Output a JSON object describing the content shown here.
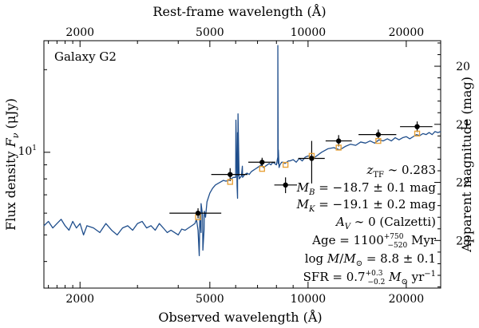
{
  "chart_data": {
    "type": "line",
    "annotation_title": "Galaxy G2",
    "xlabel": "Observed wavelength (Å)",
    "top_xlabel": "Rest-frame wavelength (Å)",
    "ylabel": "Flux density F_ν (μJy)",
    "right_ylabel": "Apparent magnitude (mag)",
    "xscale": "log",
    "yscale": "log",
    "xlim": [
      1550,
      25500
    ],
    "ylim": [
      3.2,
      25.5
    ],
    "right_ylim": [
      19.56,
      23.82
    ],
    "rest_ticks": [
      2000,
      5000,
      10000,
      20000
    ],
    "rest_tick_labels": [
      "2000",
      "5000",
      "10000",
      "20000"
    ],
    "obs_ticks": [
      2000,
      5000,
      10000,
      20000
    ],
    "obs_tick_labels": [
      "2000",
      "5000",
      "10000",
      "20000"
    ],
    "y_major_ticks": [
      10
    ],
    "y_major_tick_labels": [
      "10¹"
    ],
    "y_minor_ticks": [
      4,
      5,
      6,
      7,
      8,
      9,
      20
    ],
    "mag_ticks": [
      20,
      21,
      22,
      23
    ],
    "mag_tick_labels": [
      "20",
      "21",
      "22",
      "23"
    ],
    "series": [
      {
        "name": "Model SED",
        "color": "#1f4e8c",
        "x": [
          1550,
          1600,
          1650,
          1700,
          1750,
          1800,
          1850,
          1900,
          1950,
          2000,
          2050,
          2100,
          2200,
          2300,
          2400,
          2500,
          2600,
          2700,
          2800,
          2900,
          3000,
          3100,
          3200,
          3300,
          3400,
          3500,
          3600,
          3700,
          3800,
          3900,
          4000,
          4100,
          4200,
          4300,
          4400,
          4500,
          4550,
          4600,
          4640,
          4660,
          4700,
          4750,
          4800,
          4850,
          4900,
          5000,
          5100,
          5200,
          5300,
          5400,
          5500,
          5600,
          5700,
          5800,
          5900,
          6000,
          6060,
          6080,
          6100,
          6150,
          6200,
          6250,
          6300,
          6400,
          6500,
          6600,
          6700,
          6800,
          6900,
          7000,
          7100,
          7200,
          7300,
          7400,
          7500,
          7600,
          7700,
          7800,
          7900,
          8000,
          8050,
          8080,
          8100,
          8150,
          8200,
          8300,
          8400,
          8500,
          8600,
          8700,
          8800,
          9000,
          9200,
          9400,
          9600,
          9800,
          10000,
          10500,
          11000,
          11500,
          12000,
          12500,
          13000,
          13500,
          14000,
          14500,
          15000,
          15500,
          16000,
          16500,
          17000,
          17500,
          18000,
          18500,
          19000,
          19500,
          20000,
          20500,
          21000,
          21500,
          22000,
          22500,
          23000,
          23500,
          24000,
          24500,
          25000,
          25500
        ],
        "y": [
          5.4,
          5.6,
          5.3,
          5.5,
          5.7,
          5.4,
          5.2,
          5.6,
          5.3,
          5.5,
          5.0,
          5.4,
          5.3,
          5.1,
          5.5,
          5.2,
          5.0,
          5.3,
          5.4,
          5.2,
          5.5,
          5.6,
          5.3,
          5.4,
          5.2,
          5.5,
          5.3,
          5.1,
          5.2,
          5.1,
          5.0,
          5.25,
          5.2,
          5.3,
          5.4,
          5.5,
          5.7,
          5.2,
          4.2,
          6.0,
          5.1,
          5.9,
          5.2,
          5.8,
          6.6,
          7.1,
          7.4,
          7.6,
          7.7,
          7.8,
          7.9,
          7.85,
          7.9,
          8.0,
          8.1,
          8.1,
          7.5,
          6.8,
          8.2,
          8.0,
          8.1,
          8.2,
          8.1,
          8.3,
          8.4,
          8.3,
          8.5,
          8.6,
          8.7,
          8.8,
          8.9,
          9.0,
          8.8,
          8.9,
          9.0,
          9.1,
          9.0,
          9.2,
          9.1,
          9.0,
          9.4,
          9.6,
          9.1,
          8.8,
          9.0,
          9.2,
          9.2,
          9.1,
          9.2,
          9.3,
          9.3,
          9.4,
          9.2,
          9.5,
          9.3,
          9.6,
          9.7,
          9.6,
          10.0,
          10.3,
          10.4,
          10.2,
          10.5,
          10.7,
          10.6,
          10.9,
          10.8,
          11.0,
          10.8,
          11.1,
          11.0,
          11.2,
          11.0,
          11.3,
          11.1,
          11.3,
          11.4,
          11.2,
          11.4,
          11.6,
          11.5,
          11.7,
          11.6,
          11.8,
          11.6,
          11.9,
          11.8,
          11.9
        ],
        "spikes": [
          {
            "x": 4640,
            "y": 4.2
          },
          {
            "x": 4700,
            "y": 6.5
          },
          {
            "x": 4760,
            "y": 4.4
          },
          {
            "x": 4810,
            "y": 6.1
          },
          {
            "x": 6010,
            "y": 13.1
          },
          {
            "x": 6080,
            "y": 11.8
          },
          {
            "x": 6100,
            "y": 13.8
          },
          {
            "x": 6290,
            "y": 8.9
          },
          {
            "x": 8080,
            "y": 24.5
          },
          {
            "x": 8110,
            "y": 10.2
          }
        ]
      },
      {
        "name": "Observed photometry",
        "color": "#000000",
        "x": [
          4600,
          5770,
          7230,
          8530,
          10260,
          12410,
          16420,
          21600
        ],
        "y": [
          6.0,
          8.3,
          9.2,
          7.6,
          9.5,
          11.0,
          11.6,
          12.4
        ],
        "x_err_low": [
          3760,
          5050,
          6560,
          7880,
          9330,
          11320,
          14280,
          19140
        ],
        "x_err_high": [
          5420,
          6520,
          7940,
          9250,
          11250,
          13620,
          18640,
          24060
        ],
        "y_err_low": [
          5.75,
          7.85,
          8.85,
          7.1,
          7.7,
          10.5,
          11.2,
          11.85
        ],
        "y_err_high": [
          6.25,
          8.75,
          9.55,
          8.1,
          11.0,
          11.55,
          12.1,
          12.95
        ]
      },
      {
        "name": "Model photometry",
        "color": "#e8a23a",
        "x": [
          4600,
          5770,
          7230,
          8530,
          10260,
          12410,
          16420,
          21600
        ],
        "y": [
          5.8,
          7.8,
          8.7,
          9.0,
          9.7,
          10.4,
          11.0,
          11.7
        ]
      }
    ],
    "text_annotations": [
      {
        "name": "redshift",
        "text": "z_TF ∼ 0.283"
      },
      {
        "name": "abs-mag-b",
        "text": "M_B = −18.7 ± 0.1 mag"
      },
      {
        "name": "abs-mag-k",
        "text": "M_K = −19.1 ± 0.2 mag"
      },
      {
        "name": "extinction",
        "text": "A_V ∼ 0 (Calzetti)"
      },
      {
        "name": "age",
        "text": "Age = 1100 +750 −520 Myr"
      },
      {
        "name": "stellar-mass",
        "text": "log M/M⊙ = 8.8 ± 0.1"
      },
      {
        "name": "sfr",
        "text": "SFR = 0.7 +0.3 −0.2 M⊙ yr⁻¹"
      }
    ]
  },
  "annotations": {
    "galaxy_name": "Galaxy G2",
    "z_sym": "z",
    "z_sub": "TF",
    "z_val": " ∼ 0.283",
    "mb_sym": "M",
    "mb_sub": "B",
    "mb_val": " = −18.7 ± 0.1 mag",
    "mk_sym": "M",
    "mk_sub": "K",
    "mk_val": " = −19.1 ± 0.2 mag",
    "av_sym": "A",
    "av_sub": "V",
    "av_val": " ∼ 0 (Calzetti)",
    "age_pre": "Age = 1100",
    "age_up": "+750",
    "age_dn": "−520",
    "age_post": " Myr",
    "mass_pre": "log ",
    "mass_m": "M",
    "mass_slash": "/",
    "mass_msun": "M",
    "mass_sun": "⊙",
    "mass_val": " = 8.8 ± 0.1",
    "sfr_pre": "SFR = 0.7",
    "sfr_up": "+0.3",
    "sfr_dn": "−0.2",
    "sfr_m": " M",
    "sfr_sun": "⊙",
    "sfr_unit": " yr",
    "sfr_exp": "−1"
  },
  "axes_text": {
    "bottom_label": "Observed wavelength (Å)",
    "top_label": "Rest-frame wavelength (Å)",
    "left_label_pre": "Flux density ",
    "left_label_f": "F",
    "left_label_nu": "ν",
    "left_label_unit": " (μJy)",
    "right_label": "Apparent magnitude (mag)",
    "y_tick_base": "10",
    "y_tick_exp": "1"
  }
}
